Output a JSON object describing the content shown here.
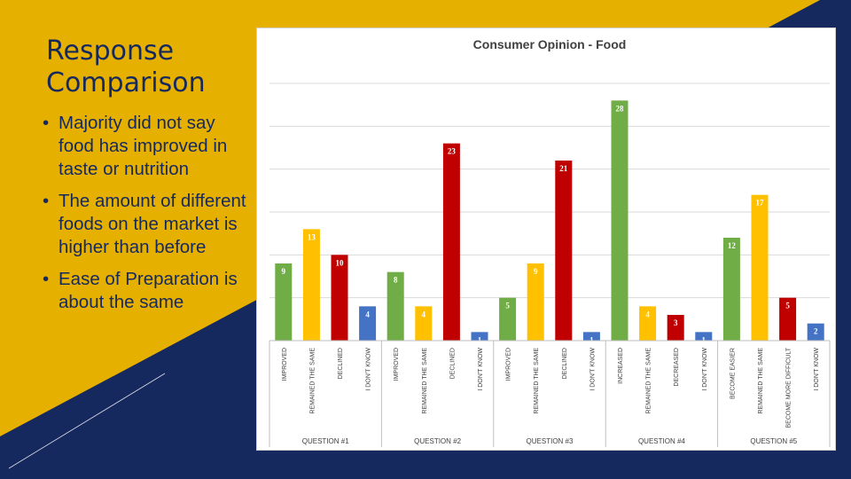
{
  "slide": {
    "title": "Response Comparison",
    "bullets": [
      "Majority did not say food has improved in taste or nutrition",
      "The amount of different foods on the market is higher than before",
      "Ease of Preparation is about the same"
    ],
    "bullet_icon": "bullet-dot",
    "colors": {
      "background": "#e5b000",
      "navy": "#16295f",
      "text": "#16295f"
    }
  },
  "chart_data": {
    "type": "bar",
    "title": "Consumer Opinion - Food",
    "xlabel": "",
    "ylabel": "",
    "ylim": [
      0,
      30
    ],
    "grid": true,
    "legend": "none",
    "groups": [
      {
        "label": "QUESTION #1",
        "bars": [
          {
            "category": "IMPROVED",
            "value": 9,
            "color": "#70ad47"
          },
          {
            "category": "REMAINED THE SAME",
            "value": 13,
            "color": "#ffc000"
          },
          {
            "category": "DECLINED",
            "value": 10,
            "color": "#c00000"
          },
          {
            "category": "I DON'T KNOW",
            "value": 4,
            "color": "#4472c4"
          }
        ]
      },
      {
        "label": "QUESTION #2",
        "bars": [
          {
            "category": "IMPROVED",
            "value": 8,
            "color": "#70ad47"
          },
          {
            "category": "REMAINED THE SAME",
            "value": 4,
            "color": "#ffc000"
          },
          {
            "category": "DECLINED",
            "value": 23,
            "color": "#c00000"
          },
          {
            "category": "I DON'T KNOW",
            "value": 1,
            "color": "#4472c4"
          }
        ]
      },
      {
        "label": "QUESTION #3",
        "bars": [
          {
            "category": "IMPROVED",
            "value": 5,
            "color": "#70ad47"
          },
          {
            "category": "REMAINED THE SAME",
            "value": 9,
            "color": "#ffc000"
          },
          {
            "category": "DECLINED",
            "value": 21,
            "color": "#c00000"
          },
          {
            "category": "I DON'T KNOW",
            "value": 1,
            "color": "#4472c4"
          }
        ]
      },
      {
        "label": "QUESTION #4",
        "bars": [
          {
            "category": "INCREASED",
            "value": 28,
            "color": "#70ad47"
          },
          {
            "category": "REMAINED THE SAME",
            "value": 4,
            "color": "#ffc000"
          },
          {
            "category": "DECREASED",
            "value": 3,
            "color": "#c00000"
          },
          {
            "category": "I DON'T KNOW",
            "value": 1,
            "color": "#4472c4"
          }
        ]
      },
      {
        "label": "QUESTION #5",
        "bars": [
          {
            "category": "BECOME EASIER",
            "value": 12,
            "color": "#70ad47"
          },
          {
            "category": "REMAINED THE SAME",
            "value": 17,
            "color": "#ffc000"
          },
          {
            "category": "BECOME MORE DIFFICULT",
            "value": 5,
            "color": "#c00000"
          },
          {
            "category": "I DON'T KNOW",
            "value": 2,
            "color": "#4472c4"
          }
        ]
      }
    ]
  }
}
